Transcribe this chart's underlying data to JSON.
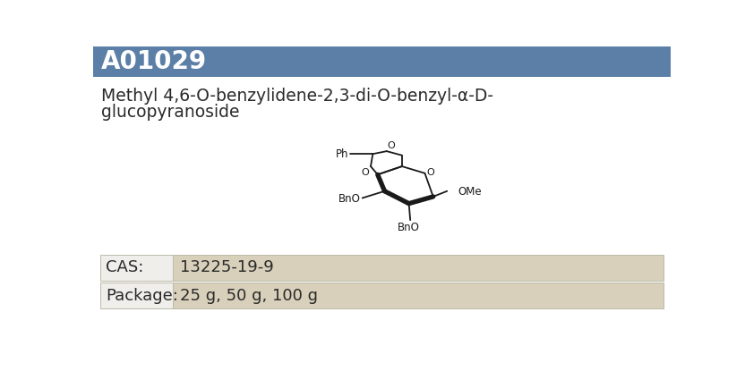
{
  "product_id": "A01029",
  "compound_name_line1": "Methyl 4,6-O-benzylidene-2,3-di-O-benzyl-α-D-",
  "compound_name_line2": "glucopyranoside",
  "cas_label": "CAS:",
  "cas_value": "13225-19-9",
  "package_label": "Package:",
  "package_value": "25 g, 50 g, 100 g",
  "header_bg_color": "#5b7fa6",
  "header_text_color": "#ffffff",
  "body_bg_color": "#ffffff",
  "table_label_bg": "#f0eeea",
  "table_value_bg": "#d8d0ba",
  "table_border_color": "#bbbbaa",
  "main_text_color": "#2a2a2a",
  "fig_bg_color": "#ffffff"
}
